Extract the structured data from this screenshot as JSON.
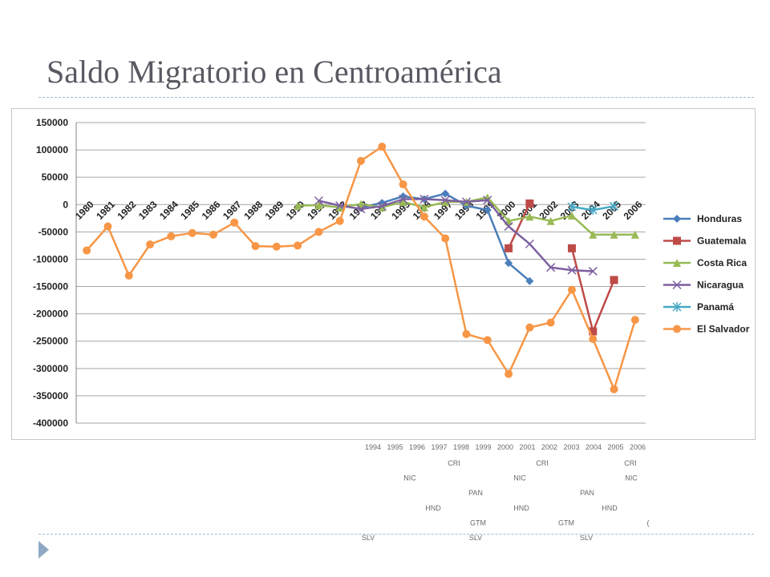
{
  "slide": {
    "title": "Saldo Migratorio en Centroamérica"
  },
  "chart_data": {
    "type": "line",
    "categories": [
      "1980",
      "1981",
      "1982",
      "1983",
      "1984",
      "1985",
      "1986",
      "1987",
      "1988",
      "1989",
      "1990",
      "1991",
      "1992",
      "1993",
      "1994",
      "1995",
      "1996",
      "1997",
      "1998",
      "1999",
      "2000",
      "2001",
      "2002",
      "2003",
      "2004",
      "2005",
      "2006"
    ],
    "y_ticks": [
      150000,
      100000,
      50000,
      0,
      -50000,
      -100000,
      -150000,
      -200000,
      -250000,
      -300000,
      -350000,
      -400000
    ],
    "y_tick_labels": [
      "150000",
      "100000",
      "50000",
      "0",
      "-50000",
      "-100000",
      "-150000",
      "-200000",
      "-250000",
      "-300000",
      "-350000",
      "-400000"
    ],
    "ylim": [
      -400000,
      150000
    ],
    "grid": true,
    "legend_position": "right",
    "series": [
      {
        "name": "Honduras",
        "color": "#4a7ebb",
        "marker": "diamond",
        "values": [
          null,
          null,
          null,
          null,
          null,
          null,
          null,
          null,
          null,
          null,
          null,
          null,
          null,
          -5000,
          3000,
          15000,
          10000,
          20000,
          -2000,
          -10000,
          -107000,
          -140000,
          null,
          null,
          null,
          null,
          null
        ]
      },
      {
        "name": "Guatemala",
        "color": "#be4b48",
        "marker": "square",
        "values": [
          null,
          null,
          null,
          null,
          null,
          null,
          null,
          null,
          null,
          null,
          null,
          null,
          null,
          null,
          null,
          null,
          null,
          null,
          null,
          null,
          -80000,
          2000,
          null,
          -80000,
          -232000,
          -138000,
          null
        ]
      },
      {
        "name": "Costa Rica",
        "color": "#98b954",
        "marker": "triangle",
        "values": [
          null,
          null,
          null,
          null,
          null,
          null,
          null,
          null,
          null,
          null,
          -2000,
          -1000,
          -5000,
          1000,
          -5000,
          5000,
          -5000,
          5000,
          5000,
          13000,
          -30000,
          -22000,
          -30000,
          -20000,
          -55000,
          -55000,
          -55000
        ]
      },
      {
        "name": "Nicaragua",
        "color": "#7d60a0",
        "marker": "x",
        "values": [
          null,
          null,
          null,
          null,
          null,
          null,
          null,
          null,
          null,
          null,
          null,
          7000,
          -2000,
          -8000,
          -3000,
          10000,
          10000,
          8000,
          5000,
          8000,
          -40000,
          -72000,
          -115000,
          -120000,
          -122000,
          null,
          null
        ]
      },
      {
        "name": "Panamá",
        "color": "#46aac5",
        "marker": "asterisk",
        "values": [
          null,
          null,
          null,
          null,
          null,
          null,
          null,
          null,
          null,
          null,
          null,
          null,
          null,
          null,
          null,
          null,
          null,
          null,
          null,
          null,
          null,
          null,
          null,
          -4000,
          -10000,
          -3000,
          null
        ]
      },
      {
        "name": "El Salvador",
        "color": "#f79646",
        "marker": "circle",
        "values": [
          -84000,
          -40000,
          -130000,
          -73000,
          -58000,
          -52000,
          -55000,
          -33000,
          -76000,
          -77000,
          -75000,
          -50000,
          -30000,
          80000,
          106000,
          37000,
          -22000,
          -62000,
          -237000,
          -248000,
          -310000,
          -225000,
          -216000,
          -156000,
          -246000,
          -338000,
          -211000
        ]
      }
    ]
  },
  "overflow_strip": {
    "years": [
      "1994",
      "1995",
      "1996",
      "1997",
      "1998",
      "1999",
      "2000",
      "2001",
      "2002",
      "2003",
      "2004",
      "2005",
      "2006"
    ],
    "rows": [
      {
        "labels": [
          "CRI",
          "CRI",
          "CRI"
        ]
      },
      {
        "labels": [
          "NIC",
          "NIC",
          "NIC"
        ]
      },
      {
        "labels": [
          "PAN",
          "PAN"
        ]
      },
      {
        "labels": [
          "HND",
          "HND",
          "HND"
        ]
      },
      {
        "labels": [
          "GTM",
          "GTM",
          "("
        ]
      },
      {
        "labels": [
          "SLV",
          "SLV",
          "SLV"
        ]
      }
    ]
  }
}
